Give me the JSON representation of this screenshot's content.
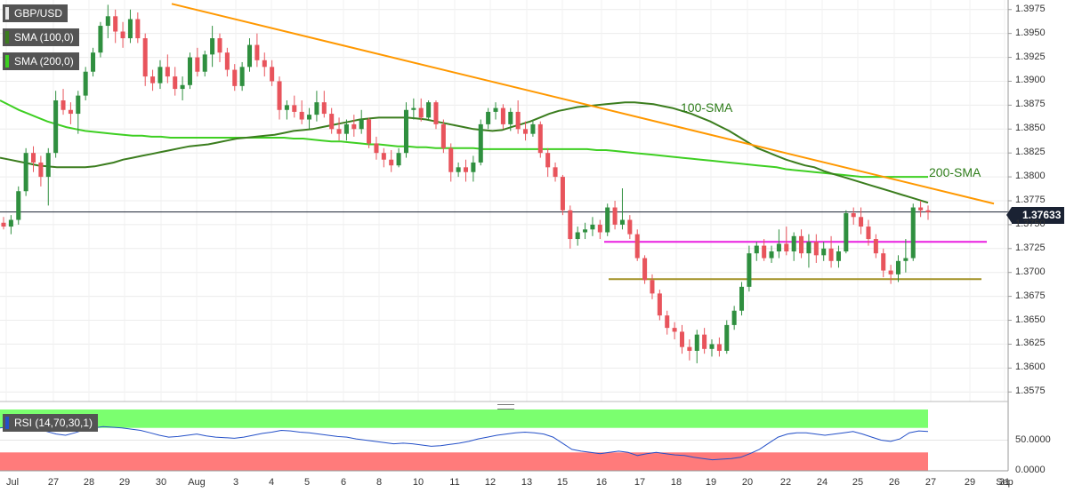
{
  "legend": {
    "symbol": "GBP/USD",
    "sma100": "SMA (100,0)",
    "sma200": "SMA (200,0)",
    "rsi": "RSI (14,70,30,1)"
  },
  "colors": {
    "bull": "#2f8f3f",
    "bear": "#e8545c",
    "sma100": "#3b7d1e",
    "sma200": "#3ecf22",
    "trendline": "#ff9800",
    "support_magenta": "#e91ee0",
    "support_olive": "#a39226",
    "price_line": "#1a2233",
    "rsi_overbought_zone": "#7bff6f",
    "rsi_oversold_zone": "#ff7b7b",
    "rsi_line": "#2450c8"
  },
  "price_badge": "1.37633",
  "annotations": {
    "sma100_label": "100-SMA",
    "sma200_label": "200-SMA"
  },
  "chart_data": {
    "type": "candlestick",
    "symbol": "GBP/USD",
    "timeframe": "hourly",
    "last_price": 1.37633,
    "x_ticks": [
      "Jul",
      "27",
      "28",
      "29",
      "30",
      "Aug",
      "3",
      "4",
      "5",
      "6",
      "8",
      "10",
      "11",
      "12",
      "13",
      "15",
      "16",
      "17",
      "18",
      "19",
      "20",
      "22",
      "24",
      "25",
      "26",
      "27",
      "29",
      "31",
      "Sep"
    ],
    "y_ticks": [
      "1.3975",
      "1.3950",
      "1.3925",
      "1.3900",
      "1.3875",
      "1.3850",
      "1.3825",
      "1.3800",
      "1.3775",
      "1.3750",
      "1.3725",
      "1.3700",
      "1.3675",
      "1.3650",
      "1.3625",
      "1.3600",
      "1.3575"
    ],
    "ylim": [
      1.3565,
      1.3985
    ],
    "candles_ohlc": [
      [
        1.3752,
        1.3758,
        1.3745,
        1.3748
      ],
      [
        1.3748,
        1.376,
        1.374,
        1.3755
      ],
      [
        1.3755,
        1.379,
        1.375,
        1.3785
      ],
      [
        1.3785,
        1.383,
        1.378,
        1.3825
      ],
      [
        1.3825,
        1.3832,
        1.3805,
        1.3815
      ],
      [
        1.3815,
        1.3822,
        1.379,
        1.38
      ],
      [
        1.38,
        1.383,
        1.377,
        1.3825
      ],
      [
        1.3825,
        1.389,
        1.382,
        1.388
      ],
      [
        1.388,
        1.3892,
        1.3865,
        1.387
      ],
      [
        1.387,
        1.3878,
        1.3855,
        1.3866
      ],
      [
        1.3866,
        1.389,
        1.3845,
        1.3885
      ],
      [
        1.3885,
        1.3915,
        1.388,
        1.391
      ],
      [
        1.391,
        1.3935,
        1.3905,
        1.393
      ],
      [
        1.393,
        1.3962,
        1.3925,
        1.3958
      ],
      [
        1.3958,
        1.398,
        1.3945,
        1.3968
      ],
      [
        1.3968,
        1.3975,
        1.394,
        1.3952
      ],
      [
        1.3952,
        1.3962,
        1.3935,
        1.3945
      ],
      [
        1.3945,
        1.3975,
        1.394,
        1.3965
      ],
      [
        1.3965,
        1.3972,
        1.394,
        1.3945
      ],
      [
        1.3945,
        1.395,
        1.3895,
        1.3905
      ],
      [
        1.3905,
        1.3912,
        1.389,
        1.3898
      ],
      [
        1.3898,
        1.3922,
        1.3892,
        1.3915
      ],
      [
        1.3915,
        1.3928,
        1.3898,
        1.3905
      ],
      [
        1.3905,
        1.3915,
        1.3885,
        1.3892
      ],
      [
        1.3892,
        1.3905,
        1.388,
        1.3896
      ],
      [
        1.3896,
        1.393,
        1.3892,
        1.3925
      ],
      [
        1.3925,
        1.3935,
        1.3905,
        1.391
      ],
      [
        1.391,
        1.3932,
        1.3905,
        1.3928
      ],
      [
        1.3928,
        1.3958,
        1.3915,
        1.3945
      ],
      [
        1.3945,
        1.395,
        1.392,
        1.393
      ],
      [
        1.393,
        1.3935,
        1.3905,
        1.3912
      ],
      [
        1.3912,
        1.3918,
        1.389,
        1.3895
      ],
      [
        1.3895,
        1.392,
        1.389,
        1.3915
      ],
      [
        1.3915,
        1.3945,
        1.391,
        1.3938
      ],
      [
        1.3938,
        1.395,
        1.3915,
        1.3922
      ],
      [
        1.3922,
        1.393,
        1.3905,
        1.3915
      ],
      [
        1.3915,
        1.3922,
        1.3895,
        1.39
      ],
      [
        1.39,
        1.3905,
        1.386,
        1.387
      ],
      [
        1.387,
        1.388,
        1.386,
        1.3875
      ],
      [
        1.3875,
        1.3885,
        1.3862,
        1.3868
      ],
      [
        1.3868,
        1.388,
        1.3855,
        1.386
      ],
      [
        1.386,
        1.3872,
        1.385,
        1.3865
      ],
      [
        1.3865,
        1.389,
        1.3858,
        1.3878
      ],
      [
        1.3878,
        1.389,
        1.3862,
        1.3866
      ],
      [
        1.3866,
        1.3872,
        1.3845,
        1.385
      ],
      [
        1.385,
        1.3862,
        1.3838,
        1.3845
      ],
      [
        1.3845,
        1.386,
        1.3838,
        1.3855
      ],
      [
        1.3855,
        1.3865,
        1.3842,
        1.385
      ],
      [
        1.385,
        1.387,
        1.3845,
        1.386
      ],
      [
        1.386,
        1.3862,
        1.383,
        1.3835
      ],
      [
        1.3835,
        1.3842,
        1.3818,
        1.3825
      ],
      [
        1.3825,
        1.383,
        1.381,
        1.3818
      ],
      [
        1.3818,
        1.3828,
        1.3805,
        1.3812
      ],
      [
        1.3812,
        1.383,
        1.381,
        1.3825
      ],
      [
        1.3825,
        1.3878,
        1.382,
        1.387
      ],
      [
        1.387,
        1.3882,
        1.386,
        1.3872
      ],
      [
        1.3872,
        1.3882,
        1.3858,
        1.3862
      ],
      [
        1.3862,
        1.388,
        1.386,
        1.3878
      ],
      [
        1.3878,
        1.388,
        1.385,
        1.3855
      ],
      [
        1.3855,
        1.386,
        1.3825,
        1.383
      ],
      [
        1.383,
        1.3835,
        1.3795,
        1.3805
      ],
      [
        1.3805,
        1.3815,
        1.38,
        1.381
      ],
      [
        1.381,
        1.3818,
        1.3795,
        1.3805
      ],
      [
        1.3805,
        1.3822,
        1.3795,
        1.3815
      ],
      [
        1.3815,
        1.386,
        1.3812,
        1.3855
      ],
      [
        1.3855,
        1.3872,
        1.385,
        1.3868
      ],
      [
        1.3868,
        1.3878,
        1.386,
        1.3872
      ],
      [
        1.3872,
        1.3876,
        1.385,
        1.3855
      ],
      [
        1.3855,
        1.3872,
        1.3848,
        1.3868
      ],
      [
        1.3868,
        1.388,
        1.3845,
        1.385
      ],
      [
        1.385,
        1.3858,
        1.3838,
        1.3845
      ],
      [
        1.3845,
        1.386,
        1.3842,
        1.3855
      ],
      [
        1.3855,
        1.3858,
        1.382,
        1.3825
      ],
      [
        1.3825,
        1.383,
        1.38,
        1.381
      ],
      [
        1.381,
        1.3815,
        1.3795,
        1.38
      ],
      [
        1.38,
        1.3802,
        1.376,
        1.3765
      ],
      [
        1.3765,
        1.377,
        1.3725,
        1.3735
      ],
      [
        1.3735,
        1.3748,
        1.3728,
        1.3742
      ],
      [
        1.3742,
        1.3752,
        1.3735,
        1.3745
      ],
      [
        1.3745,
        1.3758,
        1.3738,
        1.375
      ],
      [
        1.375,
        1.3755,
        1.3735,
        1.3742
      ],
      [
        1.3742,
        1.3772,
        1.3738,
        1.3768
      ],
      [
        1.3768,
        1.3775,
        1.3745,
        1.375
      ],
      [
        1.375,
        1.3788,
        1.3745,
        1.3755
      ],
      [
        1.3755,
        1.376,
        1.3735,
        1.374
      ],
      [
        1.374,
        1.3745,
        1.3712,
        1.3715
      ],
      [
        1.3715,
        1.3718,
        1.3688,
        1.3692
      ],
      [
        1.3692,
        1.3698,
        1.3672,
        1.3678
      ],
      [
        1.3678,
        1.3682,
        1.365,
        1.3655
      ],
      [
        1.3655,
        1.366,
        1.3635,
        1.3642
      ],
      [
        1.3642,
        1.3648,
        1.363,
        1.3638
      ],
      [
        1.3638,
        1.3645,
        1.3615,
        1.3622
      ],
      [
        1.3622,
        1.363,
        1.3608,
        1.3618
      ],
      [
        1.3618,
        1.364,
        1.3605,
        1.3635
      ],
      [
        1.3635,
        1.3642,
        1.3615,
        1.362
      ],
      [
        1.362,
        1.363,
        1.3612,
        1.3625
      ],
      [
        1.3625,
        1.3632,
        1.3612,
        1.3618
      ],
      [
        1.3618,
        1.365,
        1.3615,
        1.3645
      ],
      [
        1.3645,
        1.3665,
        1.364,
        1.366
      ],
      [
        1.366,
        1.369,
        1.3655,
        1.3685
      ],
      [
        1.3685,
        1.3728,
        1.368,
        1.372
      ],
      [
        1.372,
        1.3732,
        1.3712,
        1.3728
      ],
      [
        1.3728,
        1.3735,
        1.3712,
        1.3715
      ],
      [
        1.3715,
        1.3728,
        1.371,
        1.3722
      ],
      [
        1.3722,
        1.3745,
        1.3715,
        1.373
      ],
      [
        1.373,
        1.3748,
        1.3718,
        1.3722
      ],
      [
        1.3722,
        1.3742,
        1.3712,
        1.3738
      ],
      [
        1.3738,
        1.3745,
        1.3715,
        1.372
      ],
      [
        1.372,
        1.374,
        1.3705,
        1.3732
      ],
      [
        1.3732,
        1.374,
        1.371,
        1.3718
      ],
      [
        1.3718,
        1.3732,
        1.3712,
        1.3725
      ],
      [
        1.3725,
        1.3738,
        1.3705,
        1.3712
      ],
      [
        1.3712,
        1.3728,
        1.3705,
        1.3722
      ],
      [
        1.3722,
        1.3765,
        1.372,
        1.3762
      ],
      [
        1.3762,
        1.3768,
        1.375,
        1.3758
      ],
      [
        1.3758,
        1.3768,
        1.374,
        1.3748
      ],
      [
        1.3748,
        1.3755,
        1.3728,
        1.3735
      ],
      [
        1.3735,
        1.374,
        1.3715,
        1.372
      ],
      [
        1.372,
        1.3725,
        1.3695,
        1.3702
      ],
      [
        1.3702,
        1.3708,
        1.3688,
        1.3698
      ],
      [
        1.3698,
        1.3718,
        1.369,
        1.3712
      ],
      [
        1.3712,
        1.3735,
        1.37,
        1.3715
      ],
      [
        1.3715,
        1.3772,
        1.3712,
        1.3768
      ],
      [
        1.3768,
        1.3775,
        1.3758,
        1.3765
      ],
      [
        1.3765,
        1.377,
        1.3755,
        1.3763
      ]
    ],
    "series": [
      {
        "name": "SMA (100,0)",
        "values": [
          1.382,
          1.3818,
          1.3816,
          1.3814,
          1.3812,
          1.3811,
          1.381,
          1.381,
          1.381,
          1.381,
          1.3811,
          1.3813,
          1.3815,
          1.3818,
          1.382,
          1.3822,
          1.3824,
          1.3826,
          1.3828,
          1.383,
          1.3832,
          1.3833,
          1.3834,
          1.3836,
          1.3838,
          1.384,
          1.3841,
          1.3842,
          1.3843,
          1.3844,
          1.3846,
          1.3848,
          1.3849,
          1.385,
          1.3852,
          1.3854,
          1.3856,
          1.3858,
          1.386,
          1.3861,
          1.3862,
          1.3862,
          1.3862,
          1.3862,
          1.3861,
          1.386,
          1.3858,
          1.3856,
          1.3854,
          1.3852,
          1.385,
          1.3849,
          1.3848,
          1.3849,
          1.3852,
          1.3855,
          1.3858,
          1.3862,
          1.3866,
          1.3869,
          1.3871,
          1.3873,
          1.3874,
          1.3875,
          1.3876,
          1.3877,
          1.3878,
          1.3878,
          1.3877,
          1.3876,
          1.3874,
          1.3872,
          1.3869,
          1.3866,
          1.3862,
          1.3858,
          1.3853,
          1.3848,
          1.3842,
          1.3836,
          1.383,
          1.3826,
          1.3822,
          1.3818,
          1.3815,
          1.3812,
          1.381,
          1.3806,
          1.3803,
          1.38,
          1.3797,
          1.3794,
          1.3791,
          1.3788,
          1.3785,
          1.3782,
          1.3779,
          1.3776,
          1.3773
        ]
      },
      {
        "name": "SMA (200,0)",
        "values": [
          1.388,
          1.3875,
          1.387,
          1.3866,
          1.3862,
          1.3858,
          1.3855,
          1.3852,
          1.385,
          1.3848,
          1.3847,
          1.3846,
          1.3845,
          1.3844,
          1.3843,
          1.3843,
          1.3842,
          1.3842,
          1.3841,
          1.3841,
          1.3841,
          1.3841,
          1.3841,
          1.3841,
          1.3841,
          1.3841,
          1.3841,
          1.3841,
          1.3841,
          1.3841,
          1.3841,
          1.384,
          1.384,
          1.3839,
          1.3838,
          1.3837,
          1.3837,
          1.3836,
          1.3835,
          1.3834,
          1.3834,
          1.3833,
          1.3832,
          1.3832,
          1.3831,
          1.3831,
          1.383,
          1.383,
          1.383,
          1.383,
          1.383,
          1.3829,
          1.3829,
          1.3829,
          1.3829,
          1.3829,
          1.3829,
          1.3829,
          1.3829,
          1.3829,
          1.3829,
          1.3829,
          1.3829,
          1.3828,
          1.3828,
          1.3827,
          1.3826,
          1.3825,
          1.3824,
          1.3823,
          1.3822,
          1.3821,
          1.382,
          1.3819,
          1.3818,
          1.3817,
          1.3816,
          1.3815,
          1.3814,
          1.3813,
          1.3812,
          1.3811,
          1.381,
          1.3808,
          1.3807,
          1.3806,
          1.3805,
          1.3804,
          1.3803,
          1.3802,
          1.3801,
          1.38,
          1.38,
          1.38,
          1.38,
          1.38,
          1.38,
          1.38,
          1.38
        ]
      }
    ],
    "lines": {
      "trendline": {
        "from": 1.3981,
        "to": 1.3772
      },
      "horizontal_resistance": 1.3732,
      "horizontal_support": 1.3693,
      "current_price": 1.37633
    },
    "rsi": {
      "label": "RSI (14,70,30,1)",
      "ylim": [
        0,
        100
      ],
      "y_ticks": [
        "50.0000",
        "0.0000"
      ],
      "overbought": 70,
      "oversold": 30,
      "values": [
        70,
        72,
        74,
        72,
        68,
        64,
        60,
        58,
        62,
        67,
        70,
        72,
        71,
        70,
        68,
        66,
        62,
        58,
        55,
        56,
        58,
        60,
        57,
        55,
        54,
        53,
        55,
        58,
        61,
        63,
        66,
        65,
        63,
        62,
        60,
        58,
        56,
        55,
        52,
        50,
        48,
        46,
        44,
        45,
        44,
        42,
        40,
        41,
        43,
        45,
        48,
        52,
        55,
        58,
        60,
        62,
        63,
        62,
        60,
        55,
        45,
        35,
        32,
        30,
        28,
        30,
        32,
        30,
        25,
        28,
        30,
        28,
        26,
        25,
        22,
        20,
        18,
        19,
        20,
        22,
        28,
        35,
        45,
        55,
        60,
        62,
        62,
        60,
        58,
        60,
        62,
        64,
        60,
        55,
        50,
        48,
        52,
        62,
        65,
        64
      ]
    }
  }
}
